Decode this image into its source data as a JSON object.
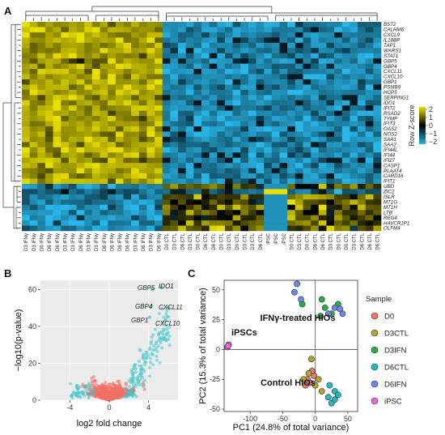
{
  "panels": {
    "a": "A",
    "b": "B",
    "c": "C"
  },
  "heatmap": {
    "genes": [
      "BST2",
      "CALHM6",
      "CXCL9",
      "IL18BP",
      "TAP1",
      "WARS1",
      "STAT1",
      "GBP5",
      "GBP4",
      "CXCL11",
      "CXCL10",
      "GBP1",
      "PSMB9",
      "HCP5",
      "SERPING1",
      "IDO1",
      "IFIT2",
      "RSAD2",
      "TYMP",
      "IFIT3",
      "OAS2",
      "NOS2",
      "SAA1",
      "SAA2",
      "IFI44L",
      "IFI44",
      "IFI27",
      "CASP1",
      "PLAAT4",
      "CARD16",
      "IFIT1",
      "UBD",
      "ZIC2",
      "ISLR",
      "MT1G",
      "MT1H",
      "LTB",
      "REG4",
      "HAVCR1P1",
      "OLFM4"
    ],
    "samples": [
      "D3 IFNγ",
      "D3 IFNγ",
      "D6 IFNγ",
      "D6 IFNγ",
      "D6 IFNγ",
      "D3 IFNγ",
      "D3 IFNγ",
      "D6 IFNγ",
      "D3 IFNγ",
      "D3 IFNγ",
      "D6 IFNγ",
      "D6 IFNγ",
      "D6 IFNγ",
      "D6 IFNγ",
      "D3 IFNγ",
      "D6 IFNγ",
      "D3 IFNγ",
      "D6 IFNγ",
      "D0 CTL",
      "D3 CTL",
      "D6 CTL",
      "D3 CTL",
      "D0 CTL",
      "D6 CTL",
      "D6 CTL",
      "D0 CTL",
      "D3 CTL",
      "D0 CTL",
      "D3 CTL",
      "D3 CTL",
      "D6 CTL",
      "iPSC",
      "iPSC",
      "iPSC",
      "D0 CTL",
      "D3 CTL",
      "D0 CTL",
      "D6 CTL",
      "D6 CTL",
      "D3 CTL",
      "D0 CTL",
      "D0 CTL",
      "D3 CTL",
      "D6 CTL",
      "D6 CTL",
      "D6 CTL"
    ],
    "legend_title": "Row Z-score",
    "legend_ticks": [
      "2",
      "1",
      "0",
      "−1",
      "−2"
    ],
    "colors": {
      "high": "#e8e000",
      "mid": "#000000",
      "low": "#29b6e8"
    }
  },
  "volcano": {
    "xlabel": "log2 fold change",
    "ylabel": "−log10(p-value)",
    "xticks": [
      "-4",
      "0",
      "4"
    ],
    "yticks": [
      "0",
      "20",
      "40",
      "60"
    ],
    "annotations": [
      "GBP5",
      "IDO1",
      "GBP4",
      "CXCL11",
      "GBP1",
      "CXCL10"
    ],
    "colors": {
      "ns": "#f07166",
      "sig": "#3cc6c9"
    }
  },
  "pca": {
    "xlabel": "PC1 (24.8% of total variance)",
    "ylabel": "PC2 (15.3% of total variance)",
    "xticks": [
      "-100",
      "-50",
      "0",
      "50"
    ],
    "yticks": [
      "50",
      "25",
      "0",
      "-25",
      "-50"
    ],
    "labels": {
      "ipsc": "iPSCs",
      "ifn": "IFNγ-treated HIOs",
      "ctl": "Control HIOs"
    },
    "legend_title": "Sample",
    "legend": [
      {
        "name": "D0",
        "color": "#f0756b"
      },
      {
        "name": "D3CTL",
        "color": "#b5a22a"
      },
      {
        "name": "D3IFN",
        "color": "#27ad4c"
      },
      {
        "name": "D6CTL",
        "color": "#22b9c0"
      },
      {
        "name": "D6IFN",
        "color": "#6f86e8"
      },
      {
        "name": "iPSC",
        "color": "#e868d3"
      }
    ]
  },
  "chart_data": [
    {
      "type": "heatmap",
      "title": "",
      "rows": "genes",
      "columns": "samples",
      "value": "Row Z-score",
      "scale": [
        -2,
        2
      ]
    },
    {
      "type": "scatter",
      "title": "",
      "xlabel": "log2 fold change",
      "ylabel": "−log10(p-value)",
      "xlim": [
        -7,
        7
      ],
      "ylim": [
        0,
        65
      ],
      "series": [
        {
          "name": "",
          "values": "not significant"
        },
        {
          "name": "",
          "values": "significant"
        }
      ],
      "labeled_points": [
        {
          "label": "GBP5",
          "x": 4.4,
          "y": 60
        },
        {
          "label": "IDO1",
          "x": 5.3,
          "y": 61
        },
        {
          "label": "GBP4",
          "x": 4.3,
          "y": 51
        },
        {
          "label": "CXCL11",
          "x": 6.0,
          "y": 50
        },
        {
          "label": "GBP1",
          "x": 4.1,
          "y": 45
        },
        {
          "label": "CXCL10",
          "x": 5.7,
          "y": 43
        }
      ]
    },
    {
      "type": "scatter",
      "title": "",
      "xlabel": "PC1 (24.8% of total variance)",
      "ylabel": "PC2 (15.3% of total variance)",
      "xlim": [
        -140,
        65
      ],
      "ylim": [
        -52,
        58
      ],
      "series": [
        {
          "name": "D0",
          "points": [
            [
              -12,
              -25
            ],
            [
              -8,
              -28
            ],
            [
              -2,
              -22
            ],
            [
              -15,
              -30
            ],
            [
              -5,
              -18
            ]
          ]
        },
        {
          "name": "D3CTL",
          "points": [
            [
              -10,
              -20
            ],
            [
              0,
              -30
            ],
            [
              10,
              -35
            ],
            [
              -18,
              -25
            ],
            [
              5,
              -25
            ],
            [
              -6,
              -8
            ]
          ]
        },
        {
          "name": "D3IFN",
          "points": [
            [
              -20,
              38
            ],
            [
              10,
              42
            ],
            [
              35,
              38
            ],
            [
              25,
              30
            ],
            [
              15,
              35
            ],
            [
              8,
              28
            ]
          ]
        },
        {
          "name": "D6CTL",
          "points": [
            [
              20,
              -40
            ],
            [
              30,
              -35
            ],
            [
              25,
              -45
            ],
            [
              35,
              -38
            ],
            [
              22,
              -30
            ],
            [
              30,
              -42
            ]
          ]
        },
        {
          "name": "D6IFN",
          "points": [
            [
              -28,
              55
            ],
            [
              -32,
              48
            ],
            [
              30,
              35
            ],
            [
              42,
              30
            ],
            [
              20,
              30
            ],
            [
              -22,
              42
            ],
            [
              38,
              34
            ]
          ]
        },
        {
          "name": "iPSC",
          "points": [
            [
              -135,
              2
            ],
            [
              -133,
              4
            ],
            [
              -134,
              3
            ]
          ]
        }
      ]
    }
  ]
}
